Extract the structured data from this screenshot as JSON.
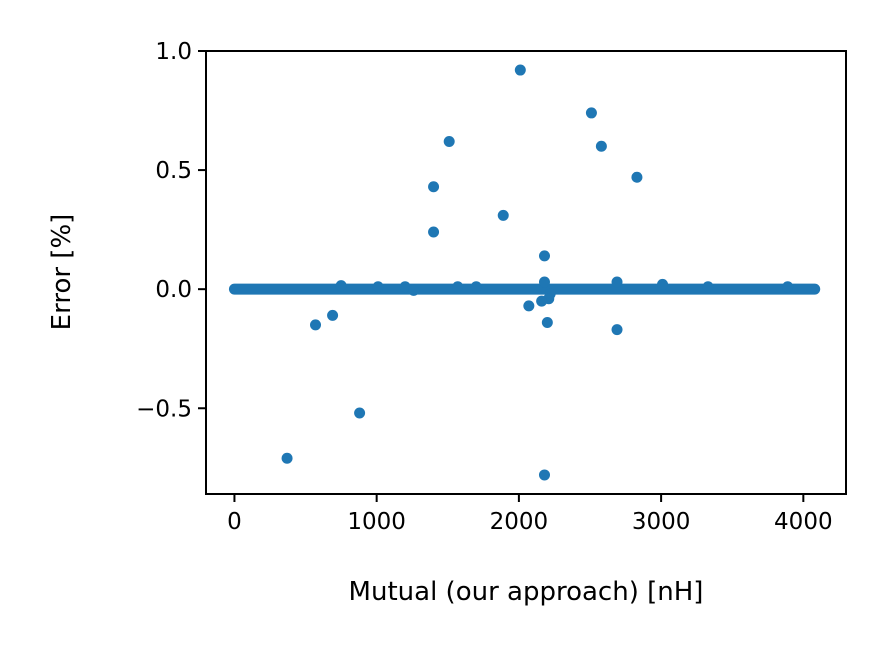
{
  "chart_data": {
    "type": "scatter",
    "title": "",
    "xlabel": "Mutual (our approach) [nH]",
    "ylabel": "Error [%]",
    "xlim": [
      -200,
      4300
    ],
    "ylim": [
      -0.86,
      1.0
    ],
    "x_ticks": [
      0,
      1000,
      2000,
      3000,
      4000
    ],
    "x_tick_labels": [
      "0",
      "1000",
      "2000",
      "3000",
      "4000"
    ],
    "y_ticks": [
      -0.5,
      0.0,
      0.5,
      1.0
    ],
    "y_tick_labels": [
      "−0.5",
      "0.0",
      "0.5",
      "1.0"
    ],
    "grid": false,
    "marker_color": "#1f77b4",
    "dense_band": {
      "x_from": 0,
      "x_to": 4080,
      "y": 0.0
    },
    "points": [
      {
        "x": 2010,
        "y": 0.92
      },
      {
        "x": 2510,
        "y": 0.74
      },
      {
        "x": 1510,
        "y": 0.62
      },
      {
        "x": 2580,
        "y": 0.6
      },
      {
        "x": 2830,
        "y": 0.47
      },
      {
        "x": 1400,
        "y": 0.43
      },
      {
        "x": 1890,
        "y": 0.31
      },
      {
        "x": 1400,
        "y": 0.24
      },
      {
        "x": 2180,
        "y": 0.14
      },
      {
        "x": 2180,
        "y": 0.03
      },
      {
        "x": 2690,
        "y": 0.03
      },
      {
        "x": 3010,
        "y": 0.02
      },
      {
        "x": 750,
        "y": 0.015
      },
      {
        "x": 1010,
        "y": 0.01
      },
      {
        "x": 1200,
        "y": 0.01
      },
      {
        "x": 1570,
        "y": 0.01
      },
      {
        "x": 1700,
        "y": 0.01
      },
      {
        "x": 3330,
        "y": 0.01
      },
      {
        "x": 3890,
        "y": 0.01
      },
      {
        "x": 1260,
        "y": -0.005
      },
      {
        "x": 2220,
        "y": -0.02
      },
      {
        "x": 2210,
        "y": -0.04
      },
      {
        "x": 2160,
        "y": -0.05
      },
      {
        "x": 2070,
        "y": -0.07
      },
      {
        "x": 690,
        "y": -0.11
      },
      {
        "x": 2200,
        "y": -0.14
      },
      {
        "x": 570,
        "y": -0.15
      },
      {
        "x": 2690,
        "y": -0.17
      },
      {
        "x": 880,
        "y": -0.52
      },
      {
        "x": 370,
        "y": -0.71
      },
      {
        "x": 2180,
        "y": -0.78
      }
    ]
  }
}
